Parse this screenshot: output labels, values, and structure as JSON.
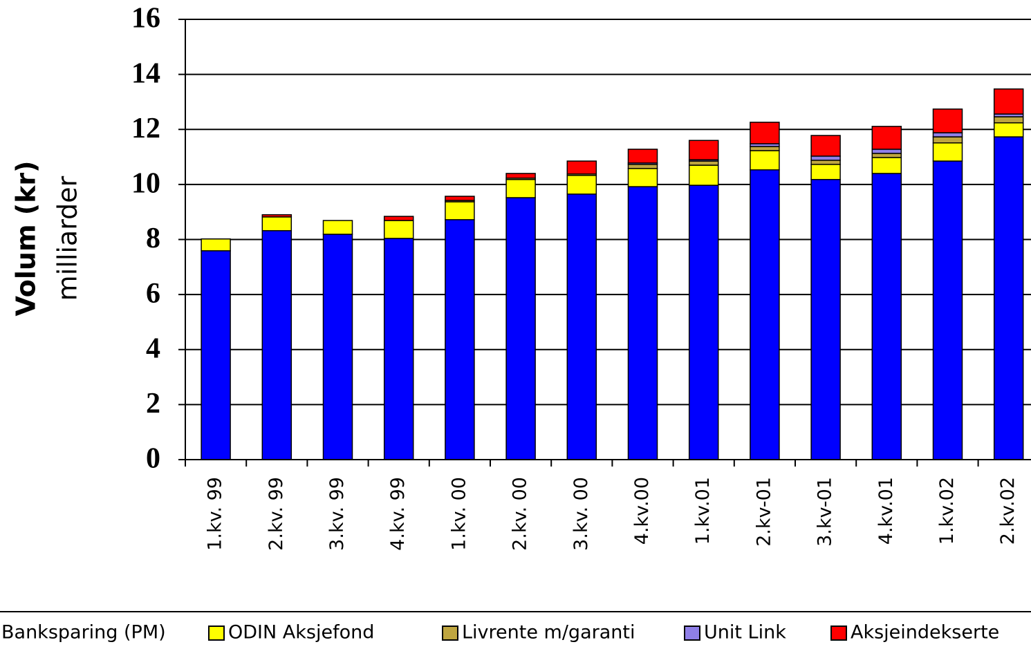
{
  "chart_data": {
    "type": "stacked_bar",
    "ylabel": "Volum (kr)",
    "ylabel_unit": "milliarder",
    "categories": [
      "1.kv. 99",
      "2.kv. 99",
      "3.kv. 99",
      "4.kv. 99",
      "1.kv. 00",
      "2.kv. 00",
      "3.kv. 00",
      "4.kv.00",
      "1.kv.01",
      "2.kv-01",
      "3.kv-01",
      "4.kv.01",
      "1.kv.02",
      "2.kv.02"
    ],
    "series": [
      {
        "name": "Banksparing (PM)",
        "color": "#0000ff",
        "values": [
          7.59,
          8.32,
          8.19,
          8.04,
          8.72,
          9.52,
          9.65,
          9.92,
          9.97,
          10.53,
          10.18,
          10.4,
          10.85,
          11.73
        ]
      },
      {
        "name": "ODIN Aksjefond",
        "color": "#ffff00",
        "values": [
          0.43,
          0.5,
          0.5,
          0.65,
          0.65,
          0.66,
          0.68,
          0.66,
          0.73,
          0.7,
          0.55,
          0.58,
          0.66,
          0.51
        ]
      },
      {
        "name": "Livrente m/garanti",
        "color": "#bfa640",
        "values": [
          0,
          0,
          0,
          0,
          0.05,
          0.05,
          0.05,
          0.15,
          0.15,
          0.15,
          0.15,
          0.15,
          0.22,
          0.22
        ]
      },
      {
        "name": "Unit Link",
        "color": "#8f7fe8",
        "values": [
          0,
          0,
          0,
          0,
          0,
          0,
          0,
          0.05,
          0.05,
          0.1,
          0.15,
          0.15,
          0.15,
          0.1
        ]
      },
      {
        "name": "Aksjeindekserte",
        "color": "#ff0000",
        "values": [
          0,
          0.08,
          0,
          0.15,
          0.15,
          0.17,
          0.47,
          0.5,
          0.7,
          0.78,
          0.75,
          0.83,
          0.86,
          0.91
        ]
      }
    ],
    "ylim": [
      0,
      16
    ],
    "yticks": [
      0,
      2,
      4,
      6,
      8,
      10,
      12,
      14,
      16
    ],
    "grid": true,
    "legend": "bottom"
  }
}
